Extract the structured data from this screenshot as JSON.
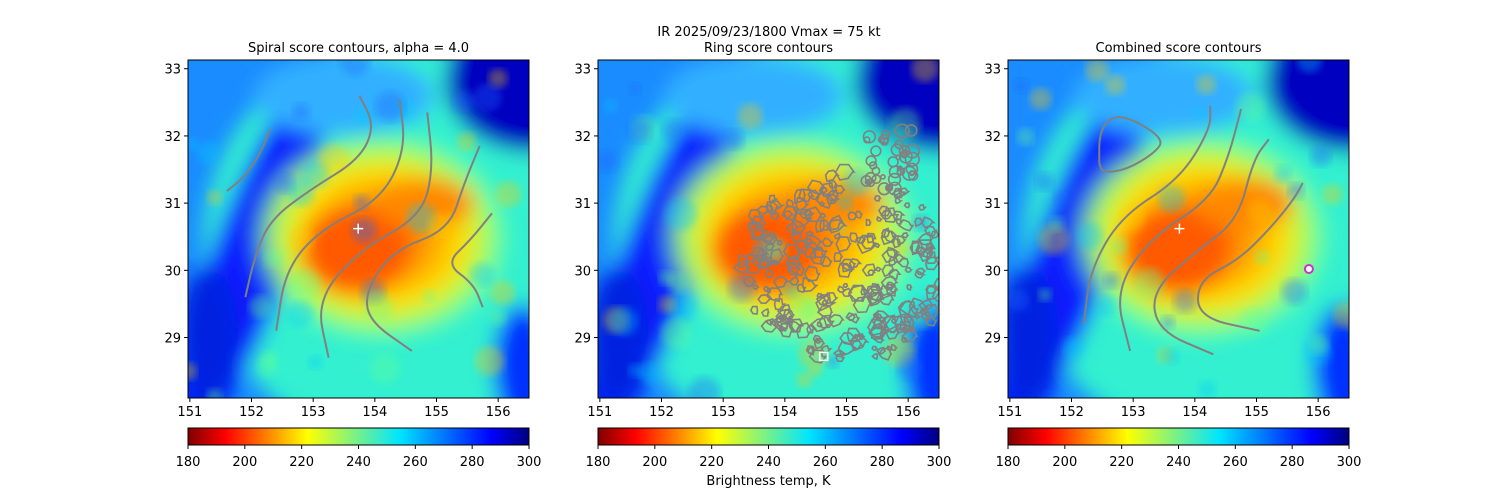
{
  "suptitle": "IR  2025/09/23/1800    Vmax = 75 kt",
  "colors": {
    "contour": "#808080",
    "marker": "#ffffff",
    "circle_marker": "#cc33cc"
  },
  "chart_data": [
    {
      "type": "heatmap",
      "title": "Spiral score contours, alpha =  4.0",
      "xlim": [
        150.97,
        156.5
      ],
      "ylim": [
        28.1,
        33.13
      ],
      "xticks": [
        "151",
        "152",
        "153",
        "154",
        "155",
        "156"
      ],
      "yticks": [
        "29",
        "30",
        "31",
        "32",
        "33"
      ],
      "colorbar": {
        "ticks": [
          "180",
          "200",
          "220",
          "240",
          "260",
          "280",
          "300"
        ],
        "range": [
          180,
          300
        ],
        "label": ""
      },
      "center_marker": {
        "shape": "plus",
        "lon": 153.73,
        "lat": 30.62
      },
      "contours": [
        [
          [
            151.6,
            31.18
          ],
          [
            151.9,
            31.4
          ],
          [
            152.15,
            31.75
          ],
          [
            152.3,
            32.1
          ]
        ],
        [
          [
            151.9,
            29.6
          ],
          [
            152.05,
            30.2
          ],
          [
            152.3,
            30.75
          ],
          [
            152.95,
            31.2
          ],
          [
            153.75,
            31.65
          ],
          [
            154.0,
            32.15
          ],
          [
            153.75,
            32.6
          ]
        ],
        [
          [
            152.4,
            29.1
          ],
          [
            152.55,
            30.0
          ],
          [
            153.1,
            30.6
          ],
          [
            154.1,
            31.05
          ],
          [
            154.5,
            31.8
          ],
          [
            154.4,
            32.55
          ]
        ],
        [
          [
            153.25,
            28.7
          ],
          [
            153.05,
            29.55
          ],
          [
            153.75,
            30.3
          ],
          [
            154.75,
            30.8
          ],
          [
            154.95,
            31.5
          ],
          [
            154.85,
            32.35
          ]
        ],
        [
          [
            154.6,
            28.8
          ],
          [
            153.9,
            29.25
          ],
          [
            153.85,
            29.7
          ],
          [
            154.3,
            30.3
          ],
          [
            155.2,
            30.6
          ],
          [
            155.45,
            31.3
          ],
          [
            155.7,
            31.85
          ]
        ],
        [
          [
            155.75,
            29.45
          ],
          [
            155.6,
            29.8
          ],
          [
            155.15,
            30.1
          ],
          [
            155.55,
            30.45
          ],
          [
            155.9,
            30.85
          ]
        ]
      ]
    },
    {
      "type": "heatmap",
      "title": "Ring score contours",
      "xlim": [
        150.97,
        156.5
      ],
      "ylim": [
        28.1,
        33.13
      ],
      "xticks": [
        "151",
        "152",
        "153",
        "154",
        "155",
        "156"
      ],
      "yticks": [
        "29",
        "30",
        "31",
        "32",
        "33"
      ],
      "colorbar": {
        "ticks": [
          "180",
          "200",
          "220",
          "240",
          "260",
          "280",
          "300"
        ],
        "range": [
          180,
          300
        ],
        "label": "Brightness temp, K"
      },
      "center_marker": {
        "shape": "square",
        "lon": 154.63,
        "lat": 28.72
      },
      "ring_region": {
        "lon": 155.0,
        "lat": 30.1,
        "rlon": 1.75,
        "rlat": 1.45
      },
      "contours": []
    },
    {
      "type": "heatmap",
      "title": "Combined score contours",
      "xlim": [
        150.97,
        156.5
      ],
      "ylim": [
        28.1,
        33.13
      ],
      "xticks": [
        "151",
        "152",
        "153",
        "154",
        "155",
        "156"
      ],
      "yticks": [
        "29",
        "30",
        "31",
        "32",
        "33"
      ],
      "colorbar": {
        "ticks": [
          "180",
          "200",
          "220",
          "240",
          "260",
          "280",
          "300"
        ],
        "range": [
          180,
          300
        ],
        "label": ""
      },
      "center_marker": {
        "shape": "plus",
        "lon": 153.75,
        "lat": 30.62
      },
      "circle_marker": {
        "lon": 155.85,
        "lat": 30.02
      },
      "contours": [
        [
          [
            152.45,
            31.6
          ],
          [
            152.45,
            32.05
          ],
          [
            152.65,
            32.3
          ],
          [
            153.0,
            32.25
          ],
          [
            153.5,
            31.95
          ],
          [
            153.35,
            31.75
          ],
          [
            152.9,
            31.5
          ],
          [
            152.5,
            31.45
          ],
          [
            152.45,
            31.6
          ]
        ],
        [
          [
            152.2,
            29.2
          ],
          [
            152.3,
            30.0
          ],
          [
            152.8,
            30.8
          ],
          [
            153.75,
            31.35
          ],
          [
            154.25,
            32.1
          ],
          [
            154.25,
            32.45
          ]
        ],
        [
          [
            152.95,
            28.8
          ],
          [
            152.7,
            29.7
          ],
          [
            153.3,
            30.5
          ],
          [
            154.25,
            31.05
          ],
          [
            154.55,
            31.7
          ],
          [
            154.75,
            32.4
          ]
        ],
        [
          [
            154.3,
            28.75
          ],
          [
            153.4,
            29.1
          ],
          [
            153.3,
            29.7
          ],
          [
            154.05,
            30.3
          ],
          [
            154.7,
            30.75
          ],
          [
            154.95,
            31.65
          ],
          [
            155.2,
            31.95
          ]
        ],
        [
          [
            155.05,
            29.1
          ],
          [
            154.05,
            29.3
          ],
          [
            154.05,
            29.85
          ],
          [
            154.7,
            30.15
          ],
          [
            155.2,
            30.6
          ],
          [
            155.6,
            31.05
          ],
          [
            155.75,
            31.3
          ]
        ]
      ]
    }
  ]
}
